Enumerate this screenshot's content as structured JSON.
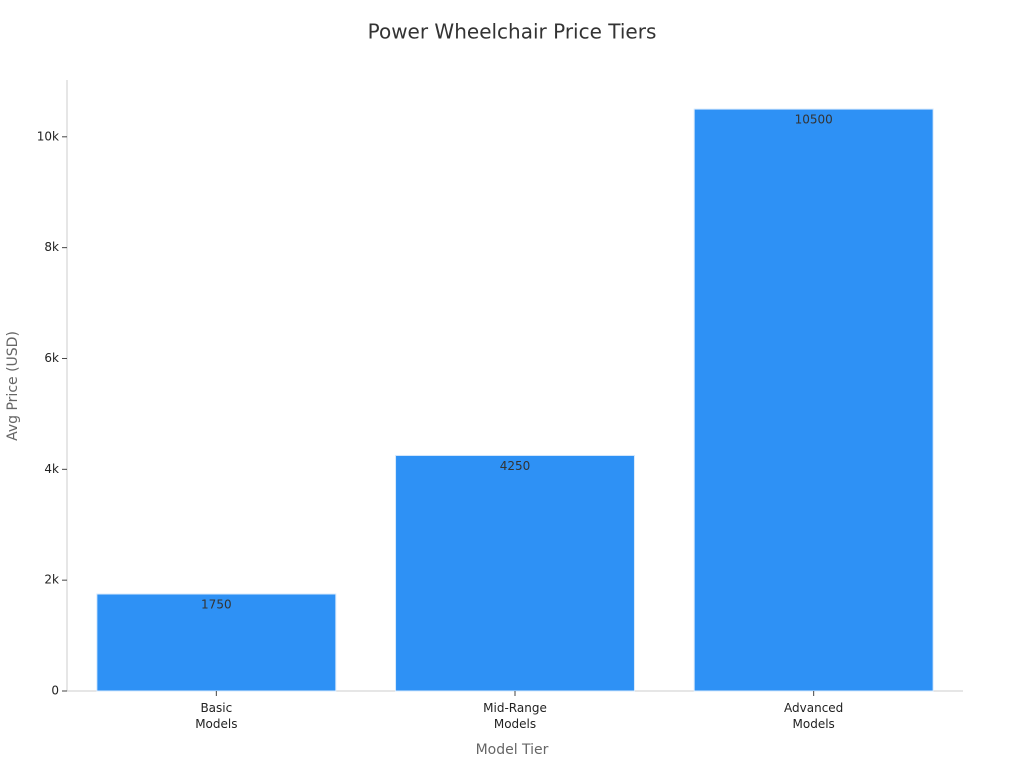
{
  "chart_data": {
    "type": "bar",
    "title": "Power Wheelchair Price Tiers",
    "x_label": "Model Tier",
    "y_label": "Avg Price (USD)",
    "categories": [
      "Basic\nModels",
      "Mid-Range\nModels",
      "Advanced\nModels"
    ],
    "values": [
      1750,
      4250,
      10500
    ],
    "color": "#2e91f5",
    "ylim": [
      0,
      11025
    ],
    "yticks": [
      0,
      {
        "value": 2000,
        "label": "2k"
      },
      {
        "value": 4000,
        "label": "4k"
      },
      {
        "value": 6000,
        "label": "6k"
      },
      {
        "value": 8000,
        "label": "8k"
      },
      {
        "value": 10000,
        "label": "10k"
      }
    ],
    "grid": false
  }
}
